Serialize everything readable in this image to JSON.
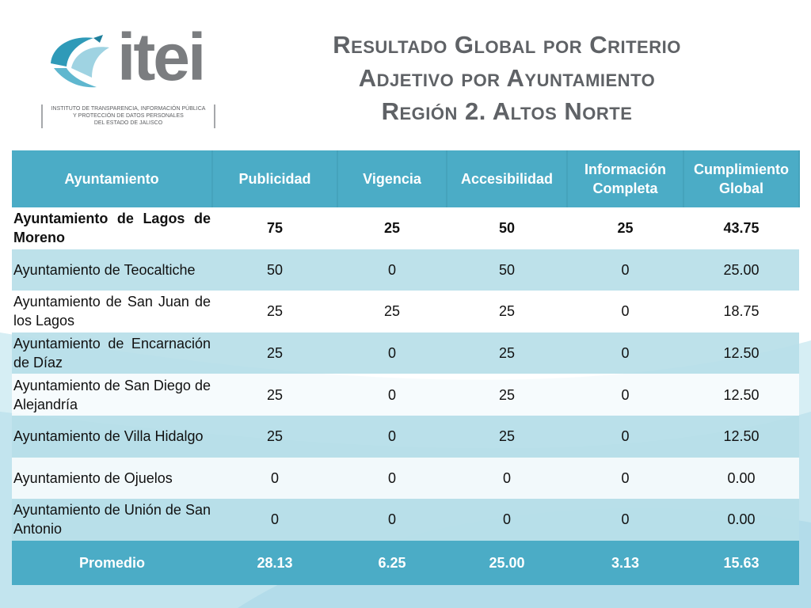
{
  "colors": {
    "header_bg": "#4bacc6",
    "row_light": "#b7dee8",
    "row_white": "#ffffff",
    "title_text": "#5f6266",
    "logo_teal": "#2f9ab8",
    "logo_gray": "#7b7d80"
  },
  "logo": {
    "wordmark": "itei",
    "caption_line1": "INSTITUTO DE TRANSPARENCIA, INFORMACIÓN PÚBLICA",
    "caption_line2": "Y PROTECCIÓN DE DATOS PERSONALES",
    "caption_line3": "DEL ESTADO DE JALISCO"
  },
  "title": {
    "line1": "Resultado Global por Criterio",
    "line2": "Adjetivo por Ayuntamiento",
    "line3": "Región 2. Altos Norte"
  },
  "table": {
    "headers": {
      "col1": "Ayuntamiento",
      "col2": "Publicidad",
      "col3": "Vigencia",
      "col4": "Accesibilidad",
      "col5": "Información Completa",
      "col6": "Cumplimiento Global"
    },
    "rows": [
      {
        "name": "Ayuntamiento de Lagos de Moreno",
        "publicidad": "75",
        "vigencia": "25",
        "accesibilidad": "50",
        "informacion": "25",
        "cumplimiento": "43.75"
      },
      {
        "name": "Ayuntamiento de Teocaltiche",
        "publicidad": "50",
        "vigencia": "0",
        "accesibilidad": "50",
        "informacion": "0",
        "cumplimiento": "25.00"
      },
      {
        "name": "Ayuntamiento de San Juan de los Lagos",
        "publicidad": "25",
        "vigencia": "25",
        "accesibilidad": "25",
        "informacion": "0",
        "cumplimiento": "18.75"
      },
      {
        "name": "Ayuntamiento de Encarnación de Díaz",
        "publicidad": "25",
        "vigencia": "0",
        "accesibilidad": "25",
        "informacion": "0",
        "cumplimiento": "12.50"
      },
      {
        "name": "Ayuntamiento de San Diego de Alejandría",
        "publicidad": "25",
        "vigencia": "0",
        "accesibilidad": "25",
        "informacion": "0",
        "cumplimiento": "12.50"
      },
      {
        "name": "Ayuntamiento de Villa Hidalgo",
        "publicidad": "25",
        "vigencia": "0",
        "accesibilidad": "25",
        "informacion": "0",
        "cumplimiento": "12.50"
      },
      {
        "name": "Ayuntamiento de Ojuelos",
        "publicidad": "0",
        "vigencia": "0",
        "accesibilidad": "0",
        "informacion": "0",
        "cumplimiento": "0.00"
      },
      {
        "name": "Ayuntamiento de Unión de San Antonio",
        "publicidad": "0",
        "vigencia": "0",
        "accesibilidad": "0",
        "informacion": "0",
        "cumplimiento": "0.00"
      }
    ],
    "total": {
      "name": "Promedio",
      "publicidad": "28.13",
      "vigencia": "6.25",
      "accesibilidad": "25.00",
      "informacion": "3.13",
      "cumplimiento": "15.63"
    }
  }
}
